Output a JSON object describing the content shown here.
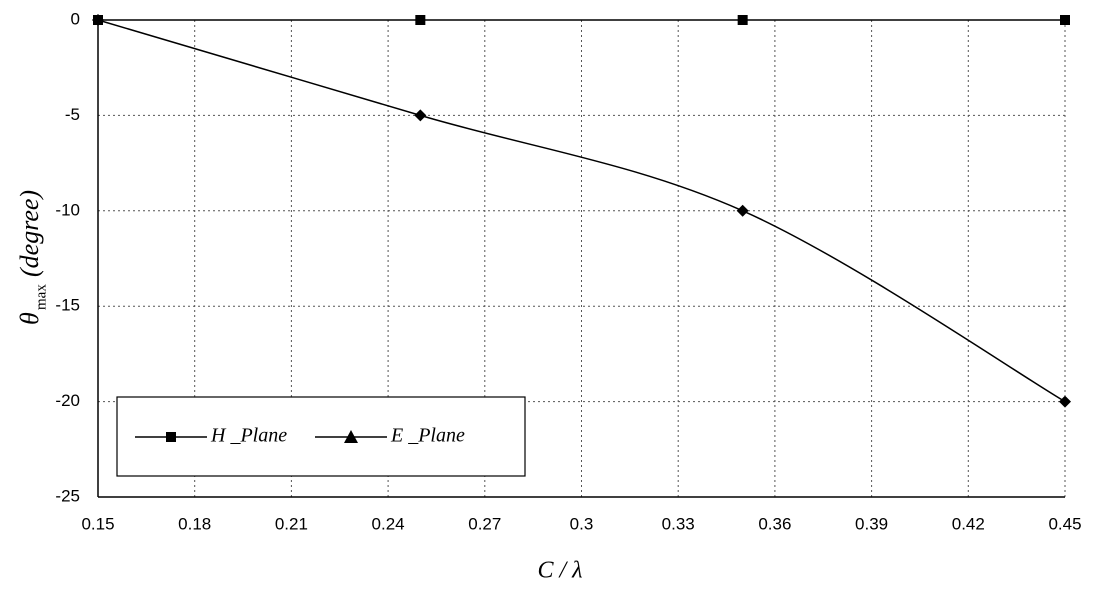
{
  "chart_data": {
    "type": "line",
    "x_label": "C / λ",
    "y_label_symbol": "θ",
    "y_label_subscript": "max",
    "y_label_unit": "(degree)",
    "x": [
      0.15,
      0.25,
      0.35,
      0.45
    ],
    "series": [
      {
        "name": "H _Plane",
        "color": "#000000",
        "marker": "square",
        "values": [
          0,
          0,
          0,
          0
        ]
      },
      {
        "name": "E _Plane",
        "color": "#000000",
        "marker": "diamond",
        "values": [
          0,
          -5,
          -10,
          -20
        ]
      }
    ],
    "xlim": [
      0.15,
      0.45
    ],
    "xticks": [
      0.15,
      0.18,
      0.21,
      0.24,
      0.27,
      0.3,
      0.33,
      0.36,
      0.39,
      0.42,
      0.45
    ],
    "ylim": [
      -25,
      0
    ],
    "yticks": [
      0,
      -5,
      -10,
      -15,
      -20,
      -25
    ],
    "grid": true,
    "legend": "lower left"
  }
}
